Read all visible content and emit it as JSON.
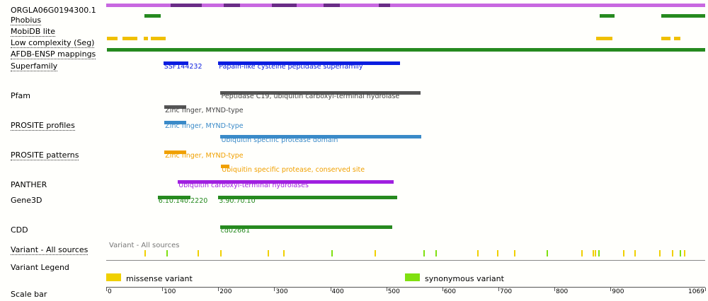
{
  "seq_length": 1069,
  "protein": {
    "id": "ORGLA06G0194300.1",
    "color": "#c868e0",
    "dark_color": "#6a2c86",
    "dark_segments": [
      [
        115,
        171
      ],
      [
        210,
        239
      ],
      [
        296,
        340
      ],
      [
        388,
        417
      ],
      [
        487,
        507
      ]
    ]
  },
  "rows": [
    {
      "key": "phobius",
      "label": "Phobius",
      "link": true,
      "color": "#268a1f",
      "features": [
        {
          "start": 68,
          "end": 97
        },
        {
          "start": 881,
          "end": 907
        },
        {
          "start": 991,
          "end": 1069
        }
      ]
    },
    {
      "key": "mobidb",
      "label": "MobiDB lite",
      "link": true,
      "color": "#268a1f",
      "features": []
    },
    {
      "key": "lowcomplexity",
      "label": "Low complexity (Seg)",
      "link": true,
      "color": "#f0c000",
      "features": [
        {
          "start": 1,
          "end": 20
        },
        {
          "start": 29,
          "end": 55
        },
        {
          "start": 67,
          "end": 74
        },
        {
          "start": 80,
          "end": 106
        },
        {
          "start": 875,
          "end": 904
        },
        {
          "start": 991,
          "end": 1007
        },
        {
          "start": 1013,
          "end": 1025
        }
      ]
    },
    {
      "key": "afdb",
      "label": "AFDB-ENSP mappings",
      "link": true,
      "color": "#268a1f",
      "features": [
        {
          "start": 1,
          "end": 1069
        }
      ]
    }
  ],
  "domain_rows": [
    {
      "key": "superfamily",
      "label": "Superfamily",
      "link": true,
      "color": "#0a1de0",
      "features": [
        {
          "start": 102,
          "end": 147,
          "text": "SSF144232",
          "level": 0
        },
        {
          "start": 200,
          "end": 525,
          "text": "Papain-like cysteine peptidase superfamily",
          "level": 0
        }
      ]
    },
    {
      "key": "pfam",
      "label": "Pfam",
      "link": false,
      "color": "#555555",
      "textcolor": "#444444",
      "features": [
        {
          "start": 204,
          "end": 561,
          "text": "Peptidase C19, ubiquitin carboxyl-terminal hydrolase",
          "level": 0
        },
        {
          "start": 104,
          "end": 143,
          "text": "Zinc finger, MYND-type",
          "level": 1
        }
      ]
    },
    {
      "key": "prosite_profiles",
      "label": "PROSITE profiles",
      "link": true,
      "color": "#3a8ac8",
      "features": [
        {
          "start": 104,
          "end": 143,
          "text": "Zinc finger, MYND-type",
          "level": 0
        },
        {
          "start": 204,
          "end": 562,
          "text": "Ubiquitin specific protease domain",
          "level": 1
        }
      ]
    },
    {
      "key": "prosite_patterns",
      "label": "PROSITE patterns",
      "link": true,
      "color": "#f0a000",
      "features": [
        {
          "start": 104,
          "end": 143,
          "text": "Zinc finger, MYND-type",
          "level": 0
        },
        {
          "start": 205,
          "end": 220,
          "text": "Ubiquitin specific protease, conserved site",
          "level": 1
        }
      ]
    },
    {
      "key": "panther",
      "label": "PANTHER",
      "link": false,
      "color": "#a020e0",
      "features": [
        {
          "start": 128,
          "end": 513,
          "text": "Ubiquitin carboxyl-terminal hydrolases",
          "level": 0
        }
      ]
    },
    {
      "key": "gene3d",
      "label": "Gene3D",
      "link": false,
      "color": "#268a1f",
      "features": [
        {
          "start": 92,
          "end": 150,
          "text": "6.10.140.2220",
          "level": 0
        },
        {
          "start": 200,
          "end": 519,
          "text": "3.90.70.10",
          "level": 0
        }
      ]
    },
    {
      "key": "cdd",
      "label": "CDD",
      "link": false,
      "color": "#268a1f",
      "features": [
        {
          "start": 203,
          "end": 510,
          "text": "cd02661",
          "level": 0
        }
      ]
    }
  ],
  "variant": {
    "label": "Variant - All sources",
    "sublabel": "Variant - All sources",
    "missense_color": "#f0d000",
    "synonymous_color": "#80e010",
    "missense": [
      68,
      163,
      203,
      288,
      316,
      479,
      662,
      697,
      728,
      848,
      868,
      872,
      923,
      943,
      987,
      1009,
      1031
    ],
    "synonymous": [
      107,
      402,
      566,
      587,
      786,
      878,
      1024
    ]
  },
  "legend": {
    "title": "Variant Legend",
    "missense_label": "missense variant",
    "synonymous_label": "synonymous variant"
  },
  "scale": {
    "label": "Scale bar",
    "ticks": [
      "0",
      "100",
      "200",
      "300",
      "400",
      "500",
      "600",
      "700",
      "800",
      "900",
      "1069"
    ]
  }
}
